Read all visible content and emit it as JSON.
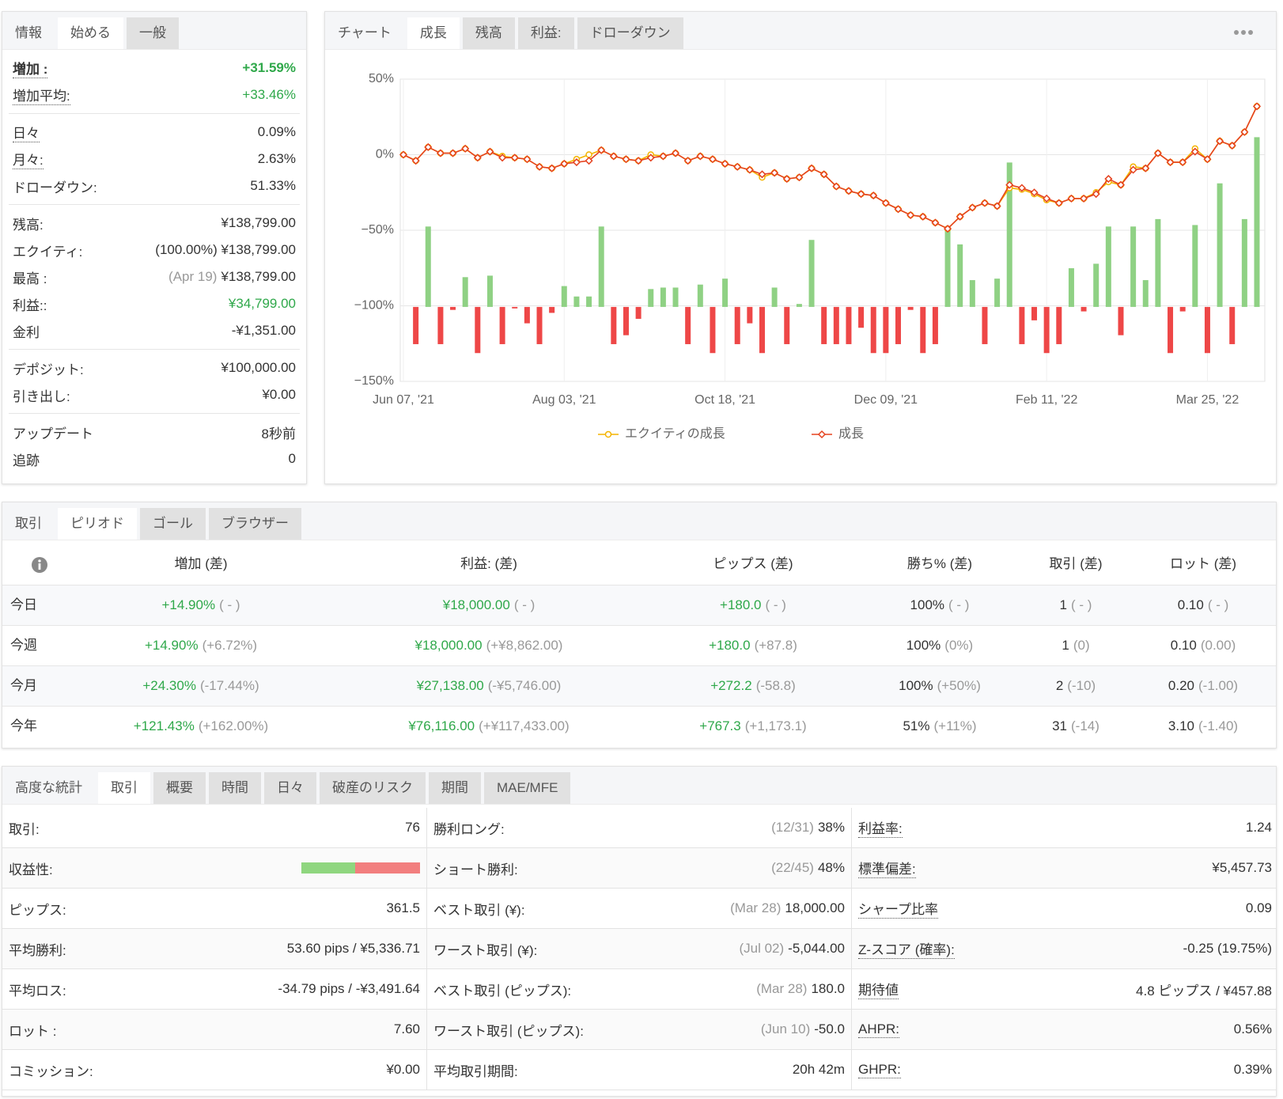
{
  "info": {
    "tabs": [
      "情報",
      "始める",
      "一般"
    ],
    "groups": [
      [
        {
          "label": "増加 :",
          "value": "+31.59%",
          "color": "#2fa84a",
          "bold": true,
          "underline": true
        },
        {
          "label": "増加平均:",
          "value": "+33.46%",
          "color": "#2fa84a",
          "underline": true
        }
      ],
      [
        {
          "label": "日々",
          "value": "0.09%",
          "underline": true
        },
        {
          "label": "月々:",
          "value": "2.63%",
          "underline": true
        },
        {
          "label": "ドローダウン:",
          "value": "51.33%"
        }
      ],
      [
        {
          "label": "残高:",
          "value": "¥138,799.00"
        },
        {
          "label": "エクイティ:",
          "value": "(100.00%) ¥138,799.00"
        },
        {
          "label": "最高 :",
          "note": "(Apr 19)",
          "value": "¥138,799.00"
        },
        {
          "label": "利益::",
          "value": "¥34,799.00",
          "color": "#2fa84a"
        },
        {
          "label": "金利",
          "value": "-¥1,351.00"
        }
      ],
      [
        {
          "label": "デポジット:",
          "value": "¥100,000.00"
        },
        {
          "label": "引き出し:",
          "value": "¥0.00"
        }
      ],
      [
        {
          "label": "アップデート",
          "value": "8秒前"
        },
        {
          "label": "追跡",
          "value": "0"
        }
      ]
    ]
  },
  "chart_tabs": [
    "チャート",
    "成長",
    "残高",
    "利益:",
    "ドローダウン"
  ],
  "chart_data": {
    "type": "combo",
    "categories": [
      "Jun 07, '21",
      null,
      null,
      null,
      null,
      null,
      null,
      null,
      null,
      null,
      null,
      null,
      null,
      "Aug 03, '21",
      null,
      null,
      null,
      null,
      null,
      null,
      null,
      null,
      null,
      null,
      null,
      null,
      "Oct 18, '21",
      null,
      null,
      null,
      null,
      null,
      null,
      null,
      null,
      null,
      null,
      null,
      null,
      "Dec 09, '21",
      null,
      null,
      null,
      null,
      null,
      null,
      null,
      null,
      null,
      null,
      null,
      null,
      "Feb 11, '22",
      null,
      null,
      null,
      null,
      null,
      null,
      null,
      null,
      null,
      null,
      null,
      null,
      "Mar 25, '22",
      null,
      null,
      null,
      null
    ],
    "ylim": [
      -150,
      50
    ],
    "yticks": [
      {
        "value": 50,
        "label": "50%"
      },
      {
        "value": 0,
        "label": "0%"
      },
      {
        "value": -50,
        "label": "−50%"
      },
      {
        "value": -100,
        "label": "−100%"
      },
      {
        "value": -150,
        "label": "−150%"
      }
    ],
    "y2lim": [
      -50,
      153
    ],
    "grid": true,
    "legend": "bottom",
    "series": [
      {
        "type": "bar",
        "axis": "y2",
        "color": "#8fd184",
        "negative_color": "#ee4747",
        "values": [
          null,
          -25,
          54,
          -25,
          -2,
          20,
          -31,
          21,
          -25,
          -1,
          -11,
          -25,
          -4,
          14,
          7,
          7,
          54,
          -25,
          -19,
          -8,
          12,
          13,
          13,
          -25,
          15,
          -31,
          19,
          -25,
          -11,
          -31,
          13,
          -25,
          2,
          45,
          -25,
          -25,
          -25,
          -14,
          -31,
          -31,
          -25,
          -2,
          -31,
          -25,
          54,
          42,
          18,
          -25,
          19,
          97,
          -25,
          -9,
          -31,
          -25,
          26,
          -3,
          29,
          54,
          -19,
          54,
          18,
          59,
          -31,
          -3,
          55,
          -31,
          83,
          -25,
          59,
          114
        ]
      },
      {
        "name": "エクイティの成長",
        "type": "line",
        "color": "#f4b400",
        "marker": "circle",
        "values": [
          0,
          -4,
          5,
          1,
          1,
          4,
          -2,
          2,
          -1,
          -2,
          -3,
          -8,
          -9,
          -6,
          -3,
          0,
          3,
          -1,
          -3,
          -4,
          0,
          -1,
          1,
          -4,
          -1,
          -3,
          -6,
          -8,
          -10,
          -15,
          -12,
          -16,
          -15,
          -9,
          -13,
          -21,
          -24,
          -26,
          -27,
          -32,
          -36,
          -40,
          -41,
          -45,
          -49,
          -41,
          -35,
          -32,
          -34,
          -22,
          -23,
          -26,
          -30,
          -32,
          -29,
          -29,
          -25,
          -18,
          -20,
          -8,
          -9,
          1,
          -5,
          -5,
          4,
          -3,
          9,
          6,
          15,
          32
        ]
      },
      {
        "name": "成長",
        "type": "line",
        "color": "#e5421f",
        "marker": "diamond",
        "values": [
          0,
          -4,
          5,
          1,
          1,
          4,
          -2,
          2,
          -2,
          -2,
          -3,
          -8,
          -9,
          -6,
          -5,
          -4,
          3,
          -1,
          -3,
          -4,
          -2,
          -1,
          1,
          -4,
          -1,
          -3,
          -6,
          -8,
          -10,
          -13,
          -12,
          -16,
          -15,
          -9,
          -13,
          -21,
          -24,
          -26,
          -27,
          -32,
          -36,
          -40,
          -41,
          -45,
          -49,
          -41,
          -35,
          -32,
          -34,
          -20,
          -22,
          -25,
          -29,
          -32,
          -29,
          -29,
          -26,
          -16,
          -20,
          -10,
          -9,
          1,
          -5,
          -5,
          2,
          -3,
          9,
          6,
          15,
          32
        ]
      }
    ]
  },
  "period": {
    "tabs": [
      "取引",
      "ピリオド",
      "ゴール",
      "ブラウザー"
    ],
    "columns": [
      {
        "label": "増加 (差)",
        "value_color": "#2fa84a"
      },
      {
        "label": "利益: (差)",
        "value_color": "#2fa84a"
      },
      {
        "label": "ピップス (差)",
        "value_color": "#2fa84a"
      },
      {
        "label": "勝ち% (差)"
      },
      {
        "label": "取引 (差)"
      },
      {
        "label": "ロット (差)"
      }
    ],
    "rows": [
      {
        "label": "今日",
        "cells": [
          {
            "value": "+14.90%",
            "diff": "( - )"
          },
          {
            "value": "¥18,000.00",
            "diff": "( - )"
          },
          {
            "value": "+180.0",
            "diff": "( - )"
          },
          {
            "value": "100%",
            "diff": "( - )"
          },
          {
            "value": "1",
            "diff": "( - )"
          },
          {
            "value": "0.10",
            "diff": "( - )"
          }
        ]
      },
      {
        "label": "今週",
        "cells": [
          {
            "value": "+14.90%",
            "diff": "(+6.72%)"
          },
          {
            "value": "¥18,000.00",
            "diff": "(+¥8,862.00)"
          },
          {
            "value": "+180.0",
            "diff": "(+87.8)"
          },
          {
            "value": "100%",
            "diff": "(0%)"
          },
          {
            "value": "1",
            "diff": "(0)"
          },
          {
            "value": "0.10",
            "diff": "(0.00)"
          }
        ]
      },
      {
        "label": "今月",
        "cells": [
          {
            "value": "+24.30%",
            "diff": "(-17.44%)"
          },
          {
            "value": "¥27,138.00",
            "diff": "(-¥5,746.00)"
          },
          {
            "value": "+272.2",
            "diff": "(-58.8)"
          },
          {
            "value": "100%",
            "diff": "(+50%)"
          },
          {
            "value": "2",
            "diff": "(-10)"
          },
          {
            "value": "0.20",
            "diff": "(-1.00)"
          }
        ]
      },
      {
        "label": "今年",
        "cells": [
          {
            "value": "+121.43%",
            "diff": "(+162.00%)"
          },
          {
            "value": "¥76,116.00",
            "diff": "(+¥117,433.00)"
          },
          {
            "value": "+767.3",
            "diff": "(+1,173.1)"
          },
          {
            "value": "51%",
            "diff": "(+11%)"
          },
          {
            "value": "31",
            "diff": "(-14)"
          },
          {
            "value": "3.10",
            "diff": "(-1.40)"
          }
        ]
      }
    ]
  },
  "stats": {
    "tabs": [
      "高度な統計",
      "取引",
      "概要",
      "時間",
      "日々",
      "破産のリスク",
      "期間",
      "MAE/MFE"
    ],
    "rows": [
      [
        {
          "label": "取引:",
          "value": "76"
        },
        {
          "label": "勝利ロング:",
          "note": "(12/31)",
          "value": "38%"
        },
        {
          "label": "利益率:",
          "value": "1.24",
          "underline": true
        }
      ],
      [
        {
          "label": "収益性:",
          "bar": [
            {
              "value": 45,
              "color": "#8fd67f"
            },
            {
              "value": 55,
              "color": "#f27e7e"
            }
          ]
        },
        {
          "label": "ショート勝利:",
          "note": "(22/45)",
          "value": "48%"
        },
        {
          "label": "標準偏差:",
          "value": "¥5,457.73",
          "underline": true
        }
      ],
      [
        {
          "label": "ピップス:",
          "value": "361.5"
        },
        {
          "label": "ベスト取引 (¥):",
          "note": "(Mar 28)",
          "value": "18,000.00"
        },
        {
          "label": "シャープ比率",
          "value": "0.09",
          "underline": true
        }
      ],
      [
        {
          "label": "平均勝利:",
          "value": "53.60 pips / ¥5,336.71"
        },
        {
          "label": "ワースト取引 (¥):",
          "note": "(Jul 02)",
          "value": "-5,044.00"
        },
        {
          "label": "Z-スコア (確率):",
          "value": "-0.25 (19.75%)",
          "underline": true
        }
      ],
      [
        {
          "label": "平均ロス:",
          "value": "-34.79 pips / -¥3,491.64"
        },
        {
          "label": "ベスト取引 (ピップス):",
          "note": "(Mar 28)",
          "value": "180.0"
        },
        {
          "label": "期待値",
          "value": "4.8 ピップス / ¥457.88",
          "underline": true
        }
      ],
      [
        {
          "label": "ロット :",
          "value": "7.60"
        },
        {
          "label": "ワースト取引 (ピップス):",
          "note": "(Jun 10)",
          "value": "-50.0"
        },
        {
          "label": "AHPR:",
          "value": "0.56%",
          "underline": true
        }
      ],
      [
        {
          "label": "コミッション:",
          "value": "¥0.00"
        },
        {
          "label": "平均取引期間:",
          "value": "20h 42m"
        },
        {
          "label": "GHPR:",
          "value": "0.39%",
          "underline": true
        }
      ]
    ]
  }
}
